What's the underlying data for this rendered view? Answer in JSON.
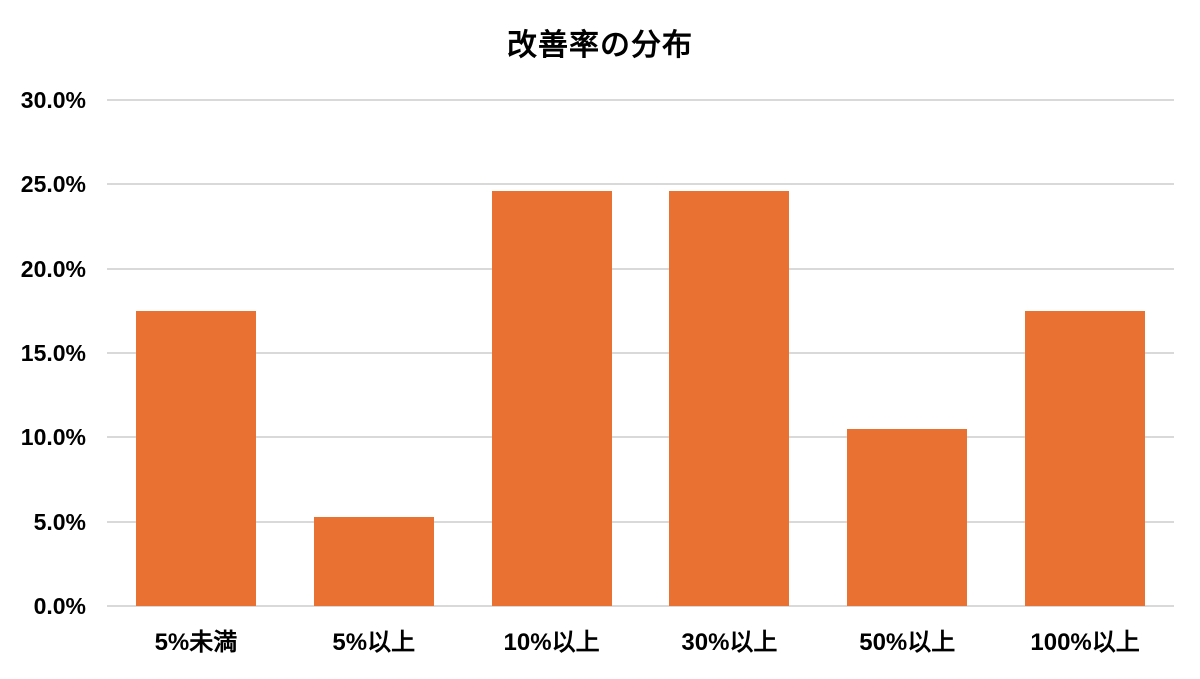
{
  "chart_data": {
    "type": "bar",
    "title": "改善率の分布",
    "categories": [
      "5%未満",
      "5%以上",
      "10%以上",
      "30%以上",
      "50%以上",
      "100%以上"
    ],
    "values": [
      17.5,
      5.3,
      24.6,
      24.6,
      10.5,
      17.5
    ],
    "y_tick_labels": [
      "0.0%",
      "5.0%",
      "10.0%",
      "15.0%",
      "20.0%",
      "25.0%",
      "30.0%"
    ],
    "y_tick_values": [
      0,
      5,
      10,
      15,
      20,
      25,
      30
    ],
    "ylim": [
      0,
      30
    ],
    "xlabel": "",
    "ylabel": "",
    "grid": true,
    "legend": false,
    "bar_color": "#E97132",
    "gridline_color": "#D9D9D9",
    "text_color": "#000000",
    "background_color": "#FFFFFF"
  }
}
